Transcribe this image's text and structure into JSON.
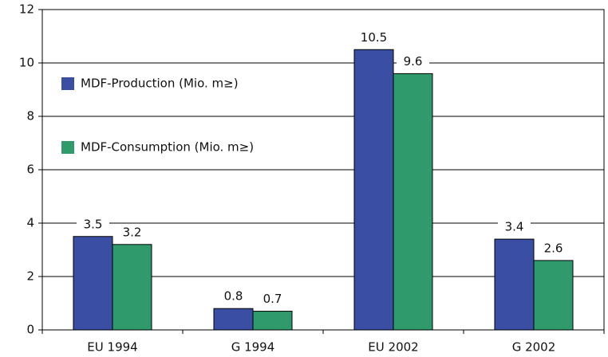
{
  "chart_data": {
    "type": "bar",
    "categories": [
      "EU 1994",
      "G 1994",
      "EU 2002",
      "G 2002"
    ],
    "series": [
      {
        "name": "MDF-Production (Mio. m≥)",
        "color": "#3a4ea3",
        "values": [
          3.5,
          0.8,
          10.5,
          3.4
        ]
      },
      {
        "name": "MDF-Consumption (Mio. m≥)",
        "color": "#2f9a6b",
        "values": [
          3.2,
          0.7,
          9.6,
          2.6
        ]
      }
    ],
    "ylim": [
      0,
      12
    ],
    "yticks": [
      0,
      2,
      4,
      6,
      8,
      10,
      12
    ],
    "grid": true,
    "legend": "upper left"
  }
}
